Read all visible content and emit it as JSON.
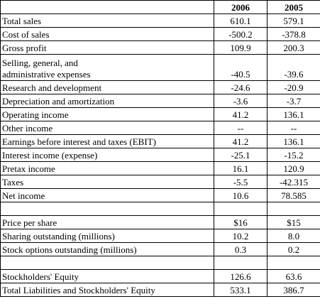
{
  "table": {
    "columns": [
      "",
      "2006",
      "2005"
    ],
    "rows": [
      {
        "label": "Total sales",
        "v2006": "610.1",
        "v2005": "579.1"
      },
      {
        "label": "Cost of sales",
        "v2006": "-500.2",
        "v2005": "-378.8"
      },
      {
        "label": "Gross profit",
        "v2006": "109.9",
        "v2005": "200.3"
      },
      {
        "label_line1": "Selling, general, and",
        "label_line2": "administrative expenses",
        "v2006": "-40.5",
        "v2005": "-39.6"
      },
      {
        "label": "Research and development",
        "v2006": "-24.6",
        "v2005": "-20.9"
      },
      {
        "label": "Depreciation and amortization",
        "v2006": "-3.6",
        "v2005": "-3.7"
      },
      {
        "label": "Operating income",
        "v2006": "41.2",
        "v2005": "136.1"
      },
      {
        "label": "Other income",
        "v2006": "--",
        "v2005": "--"
      },
      {
        "label": "Earnings before interest and taxes (EBIT)",
        "v2006": "41.2",
        "v2005": "136.1"
      },
      {
        "label": "Interest income (expense)",
        "v2006": "-25.1",
        "v2005": "-15.2"
      },
      {
        "label": "Pretax income",
        "v2006": "16.1",
        "v2005": "120.9"
      },
      {
        "label": "Taxes",
        "v2006": "-5.5",
        "v2005": "-42.315"
      },
      {
        "label": "Net income",
        "v2006": "10.6",
        "v2005": "78.585"
      },
      {
        "label": "",
        "v2006": "",
        "v2005": ""
      },
      {
        "label": "Price per share",
        "v2006": "$16",
        "v2005": "$15"
      },
      {
        "label": "Sharing outstanding (millions)",
        "v2006": "10.2",
        "v2005": "8.0"
      },
      {
        "label": "Stock options outstanding (millions)",
        "v2006": "0.3",
        "v2005": "0.2"
      },
      {
        "label": "",
        "v2006": "",
        "v2005": ""
      },
      {
        "label": "Stockholders' Equity",
        "v2006": "126.6",
        "v2005": "63.6"
      },
      {
        "label": "Total Liabilities and Stockholders' Equity",
        "v2006": "533.1",
        "v2005": "386.7"
      }
    ]
  }
}
